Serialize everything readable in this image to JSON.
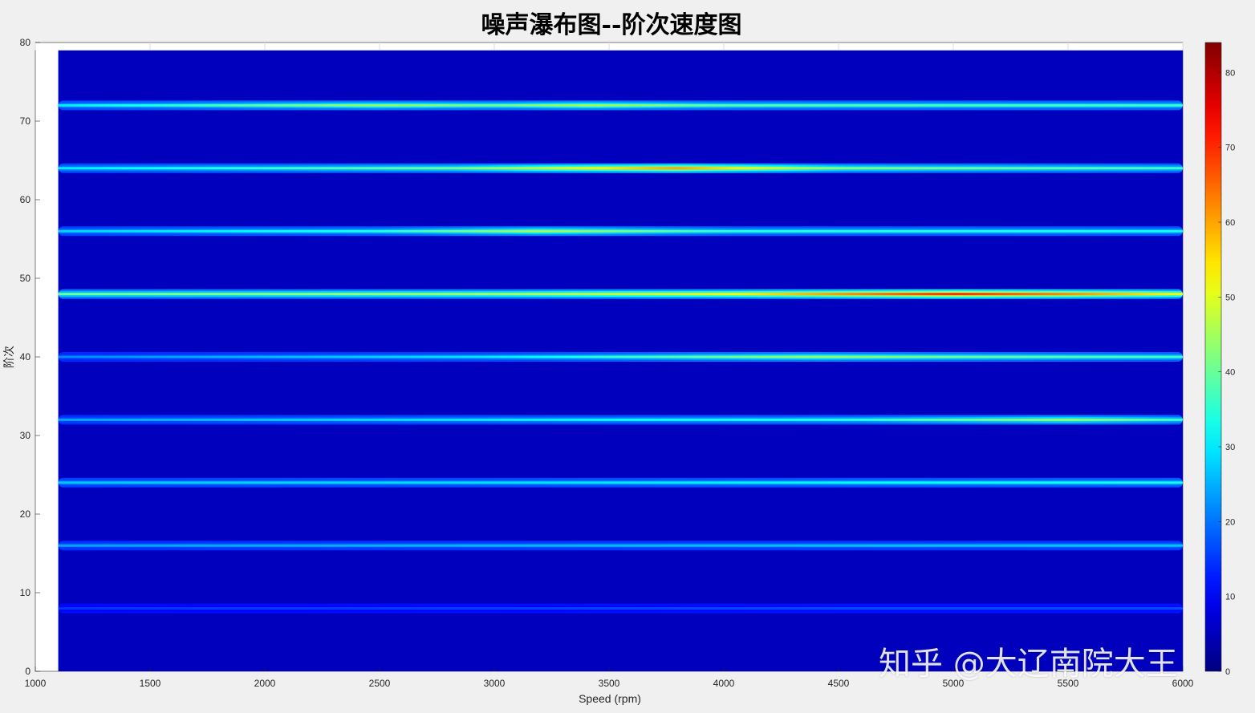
{
  "chart_data": {
    "type": "heatmap",
    "title": "噪声瀑布图--阶次速度图",
    "xlabel": "Speed (rpm)",
    "ylabel": "阶次",
    "xlim": [
      1000,
      6000
    ],
    "ylim": [
      0,
      80
    ],
    "data_x_range": [
      1100,
      6000
    ],
    "data_y_range": [
      0,
      79
    ],
    "xticks": [
      "1000",
      "1500",
      "2000",
      "2500",
      "3000",
      "3500",
      "4000",
      "4500",
      "5000",
      "5500",
      "6000"
    ],
    "yticks": [
      "0",
      "10",
      "20",
      "30",
      "40",
      "50",
      "60",
      "70",
      "80"
    ],
    "colormap": "jet",
    "background_value": 0,
    "colorbar": {
      "range": [
        0,
        84
      ],
      "ticks": [
        "0",
        "10",
        "20",
        "30",
        "40",
        "50",
        "60",
        "70",
        "80"
      ]
    },
    "orders": [
      {
        "order": 8,
        "profile": [
          [
            1100,
            15
          ],
          [
            3000,
            16
          ],
          [
            4500,
            17
          ],
          [
            6000,
            17
          ]
        ]
      },
      {
        "order": 16,
        "profile": [
          [
            1100,
            24
          ],
          [
            3500,
            26
          ],
          [
            6000,
            27
          ]
        ]
      },
      {
        "order": 24,
        "profile": [
          [
            1100,
            27
          ],
          [
            3000,
            29
          ],
          [
            5000,
            32
          ],
          [
            6000,
            33
          ]
        ]
      },
      {
        "order": 32,
        "profile": [
          [
            1100,
            24
          ],
          [
            3000,
            30
          ],
          [
            4500,
            34
          ],
          [
            5500,
            44
          ],
          [
            6000,
            36
          ]
        ]
      },
      {
        "order": 40,
        "profile": [
          [
            1100,
            22
          ],
          [
            3000,
            30
          ],
          [
            4400,
            44
          ],
          [
            5000,
            40
          ],
          [
            6000,
            36
          ]
        ]
      },
      {
        "order": 48,
        "profile": [
          [
            1100,
            40
          ],
          [
            3000,
            45
          ],
          [
            4000,
            52
          ],
          [
            5000,
            70
          ],
          [
            5500,
            62
          ],
          [
            6000,
            52
          ]
        ]
      },
      {
        "order": 56,
        "profile": [
          [
            1100,
            28
          ],
          [
            2500,
            34
          ],
          [
            3200,
            46
          ],
          [
            4000,
            35
          ],
          [
            6000,
            33
          ]
        ]
      },
      {
        "order": 64,
        "profile": [
          [
            1100,
            30
          ],
          [
            2800,
            40
          ],
          [
            3800,
            60
          ],
          [
            4500,
            42
          ],
          [
            6000,
            36
          ]
        ]
      },
      {
        "order": 72,
        "profile": [
          [
            1100,
            30
          ],
          [
            2500,
            44
          ],
          [
            3000,
            40
          ],
          [
            3400,
            46
          ],
          [
            4000,
            38
          ],
          [
            6000,
            36
          ]
        ]
      }
    ]
  },
  "watermark": "知乎 @大辽南院大王"
}
